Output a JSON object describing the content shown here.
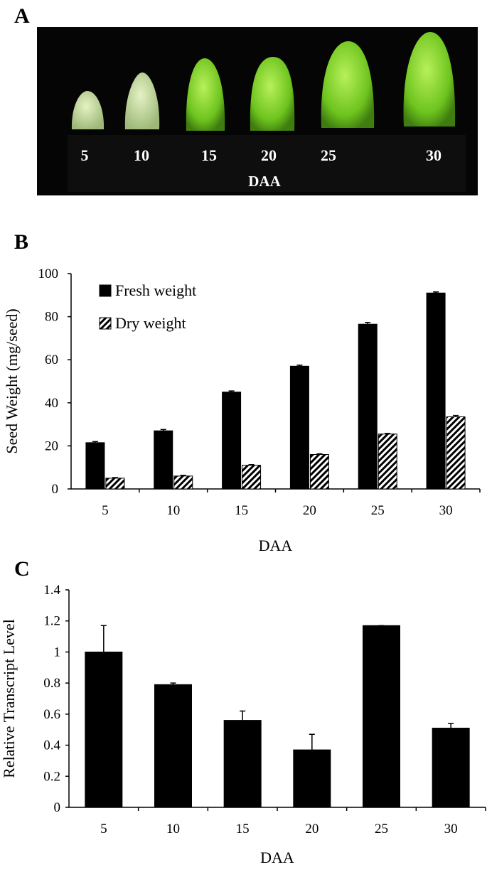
{
  "panel_a": {
    "panel": "A",
    "labels": [
      "5",
      "10",
      "15",
      "20",
      "25",
      "30"
    ],
    "axis_label": "DAA"
  },
  "chart_data": [
    {
      "type": "bar",
      "panel": "B",
      "x_label": "DAA",
      "y_label": "Seed Weight (mg/seed)",
      "categories": [
        "5",
        "10",
        "15",
        "20",
        "25",
        "30"
      ],
      "series": [
        {
          "name": "Fresh weight",
          "color": "#000000",
          "hatch": false,
          "values": [
            21.5,
            27,
            45,
            57,
            76.5,
            91
          ],
          "errors": [
            0.5,
            0.6,
            0.5,
            0.5,
            0.8,
            0.5
          ]
        },
        {
          "name": "Dry weight",
          "color": "#000000",
          "hatch": true,
          "values": [
            5,
            6,
            11,
            16,
            25.5,
            33.5
          ],
          "errors": [
            0.3,
            0.3,
            0.3,
            0.3,
            0.3,
            0.6
          ]
        }
      ],
      "ylim": [
        0,
        100
      ],
      "yticks": [
        0,
        20,
        40,
        60,
        80,
        100
      ],
      "grid": false,
      "legend": "upper left"
    },
    {
      "type": "bar",
      "panel": "C",
      "x_label": "DAA",
      "y_label": "Relative Transcript Level",
      "categories": [
        "5",
        "10",
        "15",
        "20",
        "25",
        "30"
      ],
      "series": [
        {
          "color": "#000000",
          "hatch": false,
          "values": [
            1.0,
            0.79,
            0.56,
            0.37,
            1.17,
            0.51
          ],
          "errors": [
            0.17,
            0.01,
            0.06,
            0.1,
            0,
            0.03
          ]
        }
      ],
      "ylim": [
        0,
        1.4
      ],
      "yticks": [
        0,
        0.2,
        0.4,
        0.6,
        0.8,
        1,
        1.2,
        1.4
      ],
      "grid": false
    }
  ]
}
